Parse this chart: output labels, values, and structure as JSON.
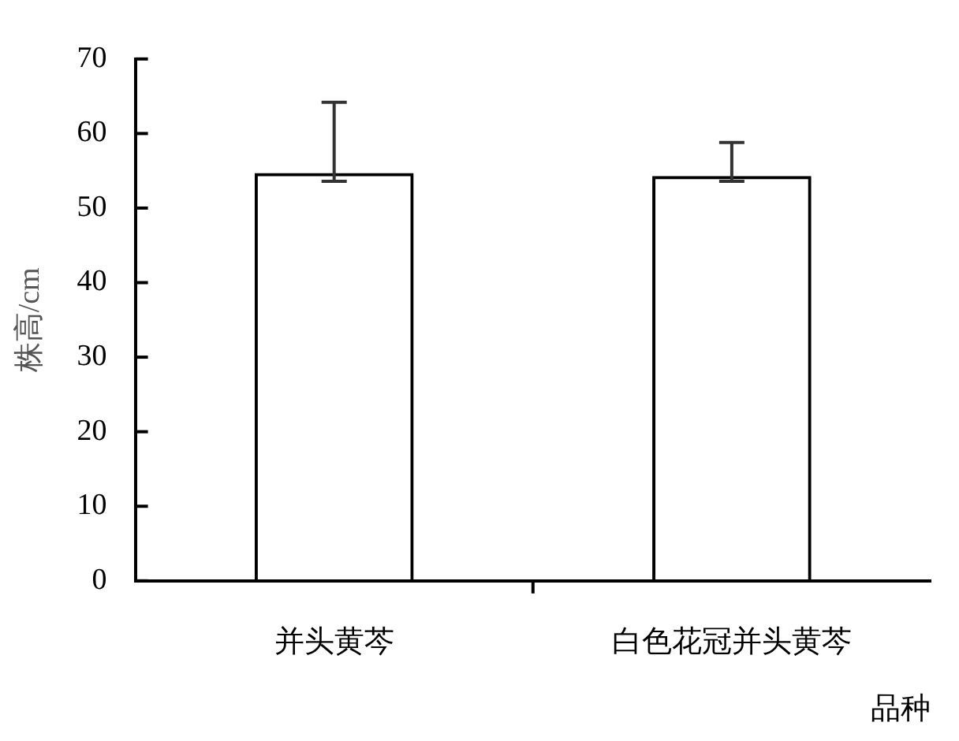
{
  "chart_data": {
    "type": "bar",
    "xlabel": "品种",
    "ylabel": "株高/cm",
    "categories": [
      "并头黄芩",
      "白色花冠并头黄芩"
    ],
    "values": [
      54.7,
      54.3
    ],
    "color": "#000000",
    "errors": [
      [
        53.6,
        64.2
      ],
      [
        53.6,
        58.8
      ]
    ],
    "ylim": [
      0,
      70
    ],
    "yticks": [
      0,
      10,
      20,
      30,
      40,
      50,
      60,
      70
    ],
    "grid": false,
    "legend": false
  }
}
